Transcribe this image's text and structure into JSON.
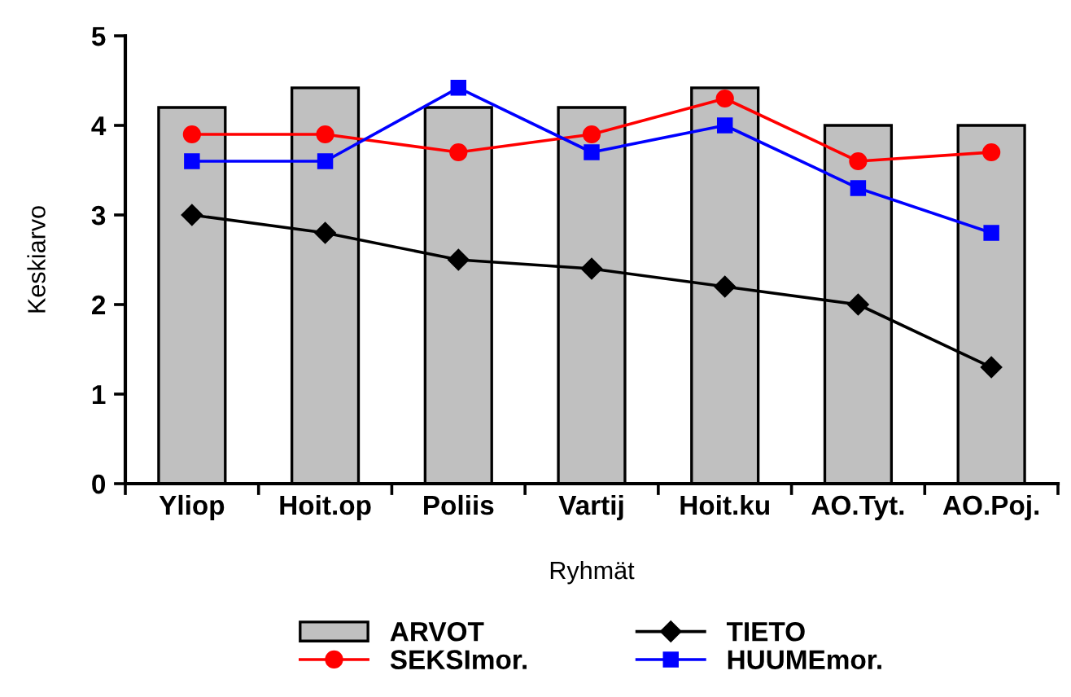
{
  "chart_data": {
    "type": "bar",
    "xlabel": "Ryhmät",
    "ylabel": "Keskiarvo",
    "categories": [
      "Yliop",
      "Hoit.op",
      "Poliis",
      "Vartij",
      "Hoit.ku",
      "AO.Tyt.",
      "AO.Poj."
    ],
    "series": [
      {
        "name": "ARVOT",
        "color": "#c0c0c0",
        "values": [
          4.2,
          4.42,
          4.2,
          4.2,
          4.42,
          4.0,
          4.0
        ]
      },
      {
        "name": "SEKSImor.",
        "type": "line",
        "color": "#ff0000",
        "marker": "circle",
        "values": [
          3.9,
          3.9,
          3.7,
          3.9,
          4.3,
          3.6,
          3.7
        ]
      },
      {
        "name": "TIETO",
        "type": "line",
        "color": "#000000",
        "marker": "diamond",
        "values": [
          3.0,
          2.8,
          2.5,
          2.4,
          2.2,
          2.0,
          1.3
        ]
      },
      {
        "name": "HUUMEmor.",
        "type": "line",
        "color": "#0000ff",
        "marker": "square",
        "values": [
          3.6,
          3.6,
          4.42,
          3.7,
          4.0,
          3.3,
          2.8
        ]
      }
    ],
    "ylim": [
      0,
      5
    ],
    "yticks": [
      0,
      1,
      2,
      3,
      4,
      5
    ],
    "grid": false,
    "legend": "bottom"
  }
}
